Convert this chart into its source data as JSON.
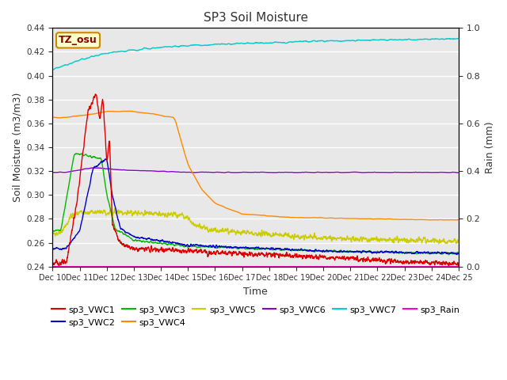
{
  "title": "SP3 Soil Moisture",
  "xlabel": "Time",
  "ylabel_left": "Soil Moisture (m3/m3)",
  "ylabel_right": "Rain (mm)",
  "ylim_left": [
    0.24,
    0.44
  ],
  "ylim_right": [
    0.0,
    1.0
  ],
  "xtick_labels": [
    "Dec 10",
    "Dec 11",
    "Dec 12",
    "Dec 13",
    "Dec 14",
    "Dec 15",
    "Dec 16",
    "Dec 17",
    "Dec 18",
    "Dec 19",
    "Dec 20",
    "Dec 21",
    "Dec 22",
    "Dec 23",
    "Dec 24",
    "Dec 25"
  ],
  "yticks_left": [
    0.24,
    0.26,
    0.28,
    0.3,
    0.32,
    0.34,
    0.36,
    0.38,
    0.4,
    0.42,
    0.44
  ],
  "yticks_right": [
    0.0,
    0.2,
    0.4,
    0.6,
    0.8,
    1.0
  ],
  "bg_color": "#e8e8e8",
  "label_box": {
    "text": "TZ_osu",
    "facecolor": "#ffffcc",
    "edgecolor": "#cc8800"
  },
  "series_colors": {
    "sp3_VWC1": "#dd0000",
    "sp3_VWC2": "#0000cc",
    "sp3_VWC3": "#00bb00",
    "sp3_VWC4": "#ff8800",
    "sp3_VWC5": "#cccc00",
    "sp3_VWC6": "#8800cc",
    "sp3_VWC7": "#00cccc",
    "sp3_Rain": "#ff00cc"
  },
  "lw": 1.0
}
